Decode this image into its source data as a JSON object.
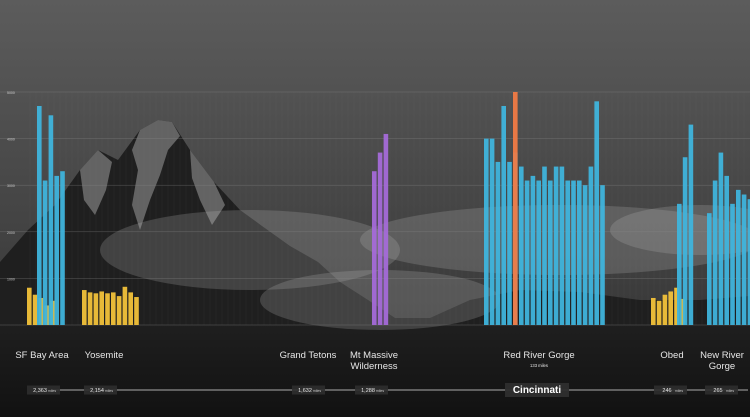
{
  "colors": {
    "sky_top": "#5c5c5c",
    "sky_bottom": "#2e2e2e",
    "mountain": "#1f1f1f",
    "snow": "#9a9a9a",
    "cloud": "#bdbdbd",
    "grid": "#8a8a8a",
    "label": "#e6e6e6",
    "timeline": "#dcdcdc",
    "yellow": "#f2c23a",
    "blue": "#3fb4dc",
    "purple": "#a46ad8",
    "orange": "#f07a45"
  },
  "chart_data": {
    "type": "bar",
    "title": "",
    "xlabel": "",
    "ylabel": "",
    "ylim": [
      0,
      5000
    ],
    "grid": true,
    "y_ticks": [
      "1000",
      "2000",
      "3000",
      "4000",
      "5000"
    ],
    "series": [
      {
        "area": "SF Bay Area",
        "color": "yellow",
        "values": [
          800,
          650,
          580,
          420,
          520
        ]
      },
      {
        "area": "SF Bay Area",
        "color": "blue",
        "values": [
          4700,
          3100,
          4500,
          3200,
          3300
        ]
      },
      {
        "area": "Yosemite",
        "color": "yellow",
        "values": [
          750,
          700,
          680,
          720,
          680,
          700,
          620,
          820,
          700,
          600
        ]
      },
      {
        "area": "Mt Massive Wilderness",
        "color": "purple",
        "values": [
          3300,
          3700,
          4100
        ]
      },
      {
        "area": "Red River Gorge",
        "color": "blue",
        "values": [
          4000,
          4000,
          3500,
          4700,
          3500,
          3700
        ]
      },
      {
        "area": "Red River Gorge",
        "color": "orange",
        "values": [
          5000
        ]
      },
      {
        "area": "Red River Gorge",
        "color": "blue",
        "values": [
          3400,
          3100,
          3200,
          3100,
          3400,
          3100,
          3400,
          3400,
          3100,
          3100,
          3100,
          3000,
          3400,
          4800,
          3000
        ]
      },
      {
        "area": "Obed",
        "color": "yellow",
        "values": [
          580,
          520,
          650,
          720,
          800,
          560
        ]
      },
      {
        "area": "Obed",
        "color": "blue",
        "values": [
          2600,
          3600,
          4300
        ]
      },
      {
        "area": "New River Gorge",
        "color": "blue",
        "values": [
          2400,
          3100,
          3700,
          3200,
          2600,
          2900,
          2800,
          2700
        ]
      }
    ]
  },
  "areas": [
    {
      "name": "SF Bay Area"
    },
    {
      "name": "Yosemite"
    },
    {
      "name": "Grand Tetons"
    },
    {
      "name": "Mt Massive\nWilderness"
    },
    {
      "name": "Red River Gorge"
    },
    {
      "name": "Obed"
    },
    {
      "name": "New River\nGorge"
    }
  ],
  "rrg_distance": "133 miles",
  "timeline": {
    "hub": "Cincinnati",
    "unit": "miles",
    "distances": [
      "2,363",
      "2,154",
      "1,632",
      "1,288",
      "246",
      "265"
    ]
  }
}
